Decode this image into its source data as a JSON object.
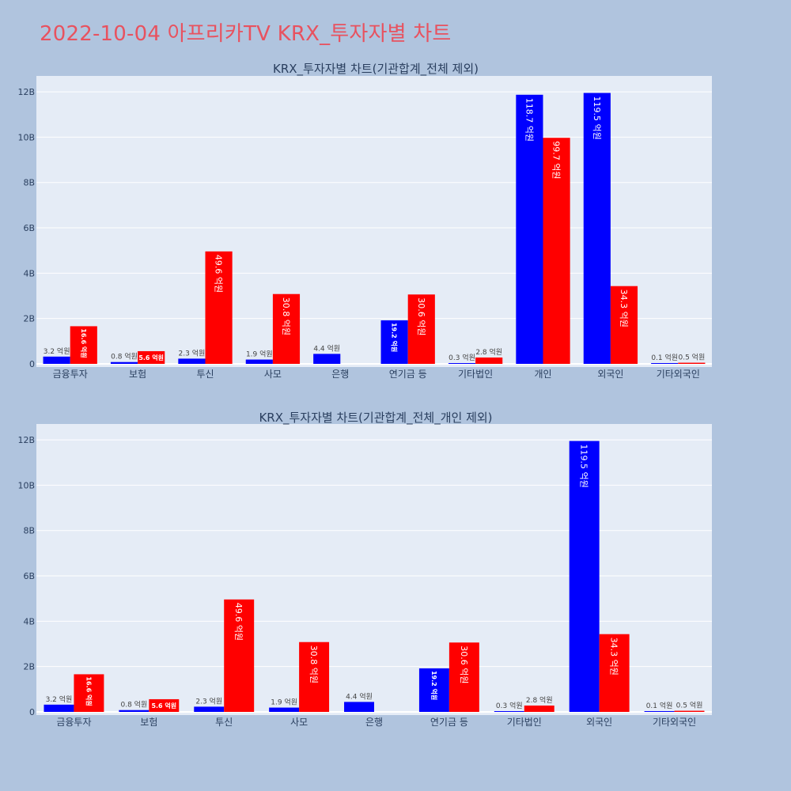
{
  "title": "2022-10-04 아프리카TV KRX_투자자별 차트",
  "colors": {
    "background": "#b0c4de",
    "plot_bg": "#e5ecf6",
    "title": "#e8525f",
    "series_a": "#0000ff",
    "series_b": "#ff0000",
    "grid": "#ffffff",
    "text": "#2a3f5f"
  },
  "chart_data": [
    {
      "type": "bar",
      "title": "KRX_투자자별 차트(기관합계_전체 제외)",
      "xlabel": "",
      "ylabel": "",
      "ylim": [
        0,
        12700000000
      ],
      "yticks": [
        0,
        2000000000,
        4000000000,
        6000000000,
        8000000000,
        10000000000,
        12000000000
      ],
      "ytick_labels": [
        "0",
        "2B",
        "4B",
        "6B",
        "8B",
        "10B",
        "12B"
      ],
      "categories": [
        "금융투자",
        "보험",
        "투신",
        "사모",
        "은행",
        "연기금 등",
        "기타법인",
        "개인",
        "외국인",
        "기타외국인"
      ],
      "series": [
        {
          "name": "series_a",
          "color": "#0000ff",
          "values": [
            320000000,
            80000000,
            230000000,
            190000000,
            440000000,
            1920000000,
            30000000,
            11870000000,
            11950000000,
            10000000
          ],
          "labels": [
            "3.2 억원",
            "0.8 억원",
            "2.3 억원",
            "1.9 억원",
            "4.4 억원",
            "19.2 억원",
            "0.3 억원",
            "118.7 억원",
            "119.5 억원",
            "0.1 억원"
          ]
        },
        {
          "name": "series_b",
          "color": "#ff0000",
          "values": [
            1660000000,
            560000000,
            4960000000,
            3080000000,
            null,
            3060000000,
            280000000,
            9970000000,
            3430000000,
            50000000
          ],
          "labels": [
            "16.6 억원",
            "5.6 억원",
            "49.6 억원",
            "30.8 억원",
            "",
            "30.6 억원",
            "2.8 억원",
            "99.7 억원",
            "34.3 억원",
            "0.5 억원"
          ]
        }
      ]
    },
    {
      "type": "bar",
      "title": "KRX_투자자별 차트(기관합계_전체_개인 제외)",
      "xlabel": "",
      "ylabel": "",
      "ylim": [
        0,
        12700000000
      ],
      "yticks": [
        0,
        2000000000,
        4000000000,
        6000000000,
        8000000000,
        10000000000,
        12000000000
      ],
      "ytick_labels": [
        "0",
        "2B",
        "4B",
        "6B",
        "8B",
        "10B",
        "12B"
      ],
      "categories": [
        "금융투자",
        "보험",
        "투신",
        "사모",
        "은행",
        "연기금 등",
        "기타법인",
        "외국인",
        "기타외국인"
      ],
      "series": [
        {
          "name": "series_a",
          "color": "#0000ff",
          "values": [
            320000000,
            80000000,
            230000000,
            190000000,
            440000000,
            1920000000,
            30000000,
            11950000000,
            10000000
          ],
          "labels": [
            "3.2 억원",
            "0.8 억원",
            "2.3 억원",
            "1.9 억원",
            "4.4 억원",
            "19.2 억원",
            "0.3 억원",
            "119.5 억원",
            "0.1 억원"
          ]
        },
        {
          "name": "series_b",
          "color": "#ff0000",
          "values": [
            1660000000,
            560000000,
            4960000000,
            3080000000,
            null,
            3060000000,
            280000000,
            3430000000,
            50000000
          ],
          "labels": [
            "16.6 억원",
            "5.6 억원",
            "49.6 억원",
            "30.8 억원",
            "",
            "30.6 억원",
            "2.8 억원",
            "34.3 억원",
            "0.5 억원"
          ]
        }
      ]
    }
  ]
}
